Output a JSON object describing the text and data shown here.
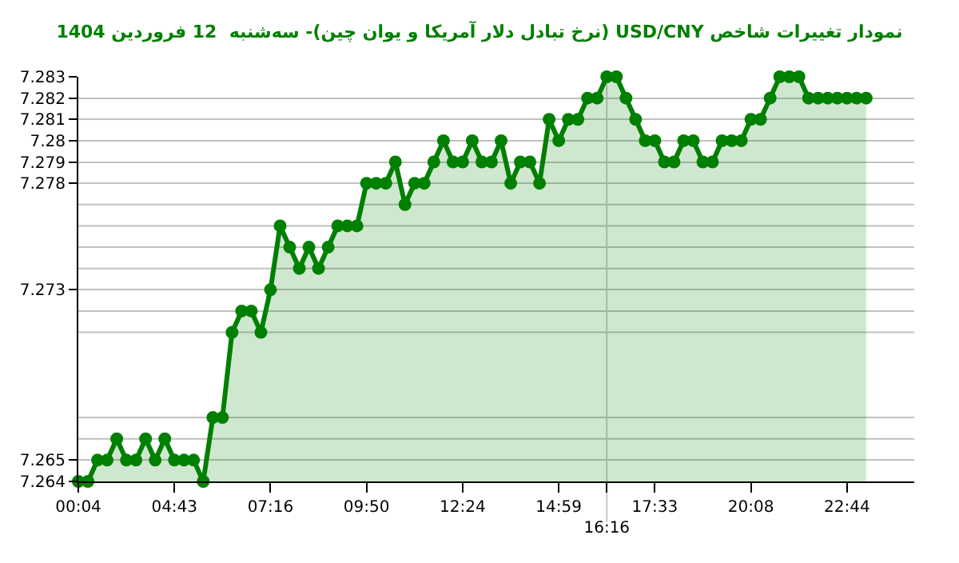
{
  "chart_data": {
    "type": "area",
    "title": "نمودار تغییرات شاخص USD/CNY (نرخ تبادل دلار آمریکا و یوان چین)- سه‌شنبه  12 فروردین 1404",
    "categories": [
      "00:04",
      null,
      null,
      null,
      null,
      null,
      null,
      null,
      null,
      null,
      "04:43",
      null,
      null,
      null,
      null,
      null,
      null,
      null,
      null,
      null,
      "07:16",
      null,
      null,
      null,
      null,
      null,
      null,
      null,
      null,
      null,
      "09:50",
      null,
      null,
      null,
      null,
      null,
      null,
      null,
      null,
      null,
      "12:24",
      null,
      null,
      null,
      null,
      null,
      null,
      null,
      null,
      null,
      "14:59",
      null,
      null,
      null,
      null,
      "16:16",
      null,
      null,
      null,
      null,
      "17:33",
      null,
      null,
      null,
      null,
      null,
      null,
      null,
      null,
      null,
      "20:08",
      null,
      null,
      null,
      null,
      null,
      null,
      null,
      null,
      null,
      "22:44",
      null,
      null
    ],
    "series": [
      {
        "color": "#008000",
        "values": [
          7.264,
          7.264,
          7.265,
          7.265,
          7.266,
          7.265,
          7.265,
          7.266,
          7.265,
          7.266,
          7.265,
          7.265,
          7.265,
          7.264,
          7.267,
          7.267,
          7.271,
          7.272,
          7.272,
          7.271,
          7.273,
          7.276,
          7.275,
          7.274,
          7.275,
          7.274,
          7.275,
          7.276,
          7.276,
          7.276,
          7.278,
          7.278,
          7.278,
          7.279,
          7.277,
          7.278,
          7.278,
          7.279,
          7.28,
          7.279,
          7.279,
          7.28,
          7.279,
          7.279,
          7.28,
          7.278,
          7.279,
          7.279,
          7.278,
          7.281,
          7.28,
          7.281,
          7.281,
          7.282,
          7.282,
          7.283,
          7.283,
          7.282,
          7.281,
          7.28,
          7.28,
          7.279,
          7.279,
          7.28,
          7.28,
          7.279,
          7.279,
          7.28,
          7.28,
          7.28,
          7.281,
          7.281,
          7.282,
          7.283,
          7.283,
          7.283,
          7.282,
          7.282,
          7.282,
          7.282,
          7.282,
          7.282,
          7.282
        ]
      }
    ],
    "ylim": [
      7.264,
      7.283
    ],
    "yticks": [
      7.264,
      7.265,
      {
        "value": 7.266,
        "label": null
      },
      {
        "value": 7.267,
        "label": null
      },
      {
        "value": 7.271,
        "label": null
      },
      {
        "value": 7.272,
        "label": null
      },
      7.273,
      {
        "value": 7.274,
        "label": null
      },
      {
        "value": 7.275,
        "label": null
      },
      {
        "value": 7.276,
        "label": null
      },
      {
        "value": 7.277,
        "label": null
      },
      {
        "value": 7.278,
        "label": "7.278"
      },
      {
        "value": 7.279,
        "label": "7.279"
      },
      {
        "value": 7.28,
        "label": "7.28"
      },
      {
        "value": 7.281,
        "label": "7.281"
      },
      {
        "value": 7.282,
        "label": "7.282"
      },
      {
        "value": 7.283,
        "label": "7.283"
      }
    ],
    "ref_lines": [
      {
        "axis": "x",
        "value": "16:16",
        "color": "#c8c8c8"
      }
    ],
    "grid": "y",
    "marker": "circle",
    "line_style": "solid"
  }
}
